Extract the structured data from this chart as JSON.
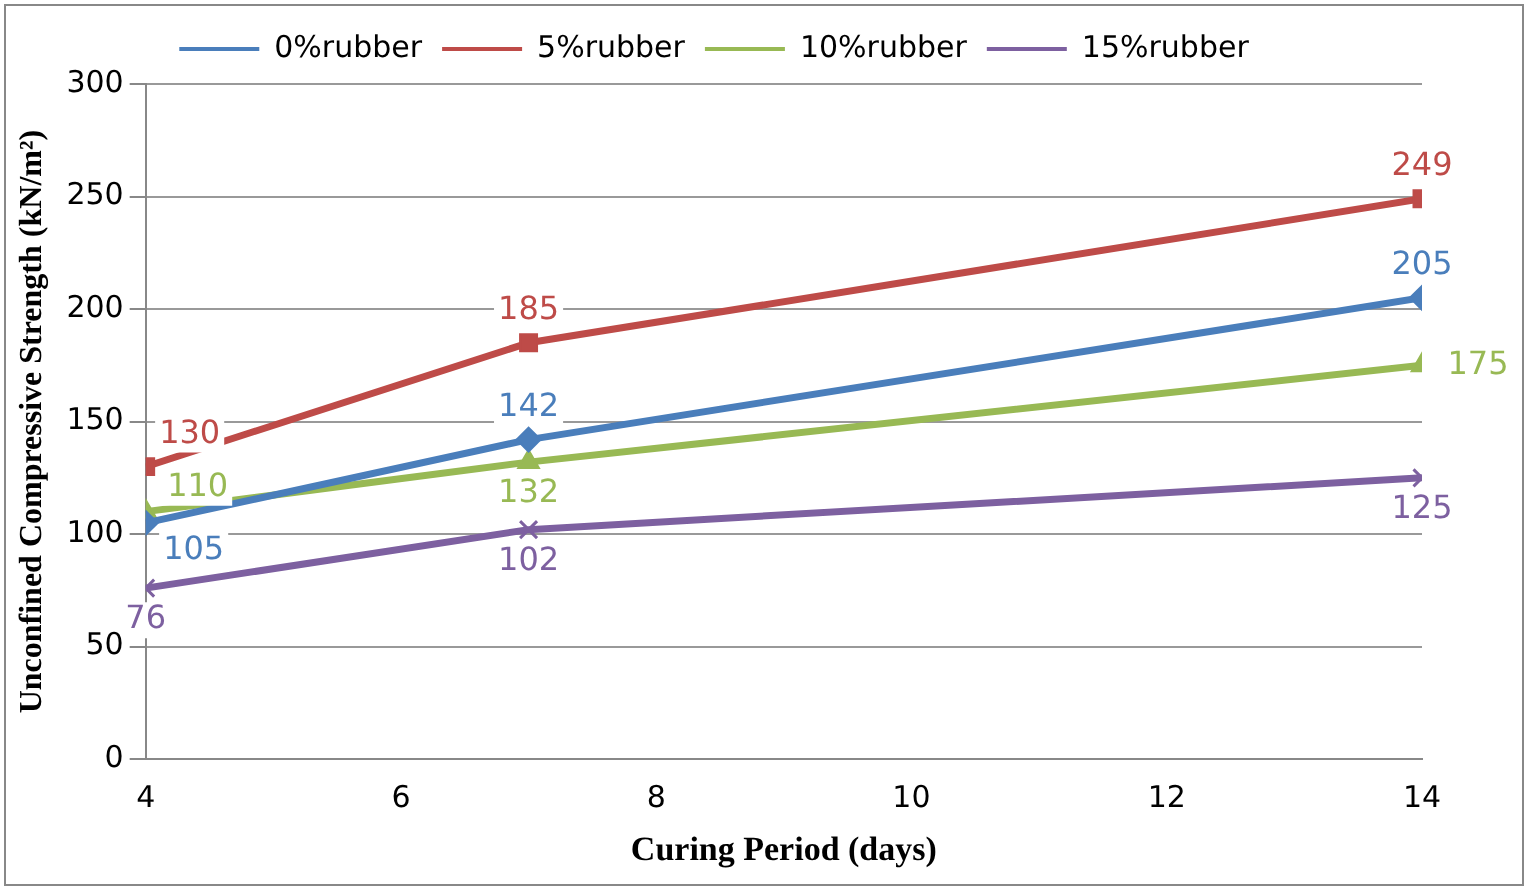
{
  "chart_data": {
    "type": "line",
    "xlabel": "Curing Period (days)",
    "ylabel": "Unconfined Compressive Strength (kN/m²)",
    "x": [
      4,
      7,
      14
    ],
    "xlim": [
      4,
      14
    ],
    "xticks": [
      4,
      6,
      8,
      10,
      12,
      14
    ],
    "ylim": [
      0,
      300
    ],
    "yticks": [
      0,
      50,
      100,
      150,
      200,
      250,
      300
    ],
    "grid": "y",
    "legend": "top",
    "data_labels": true,
    "series": [
      {
        "name": "0%rubber",
        "color": "#4a7ebb",
        "marker": "diamond",
        "values": [
          105,
          142,
          205
        ]
      },
      {
        "name": "5%rubber",
        "color": "#be4b48",
        "marker": "square",
        "values": [
          130,
          185,
          249
        ]
      },
      {
        "name": "10%rubber",
        "color": "#98b954",
        "marker": "triangle",
        "values": [
          110,
          132,
          175
        ]
      },
      {
        "name": "15%rubber",
        "color": "#7d60a0",
        "marker": "cross",
        "values": [
          76,
          102,
          125
        ]
      }
    ]
  }
}
